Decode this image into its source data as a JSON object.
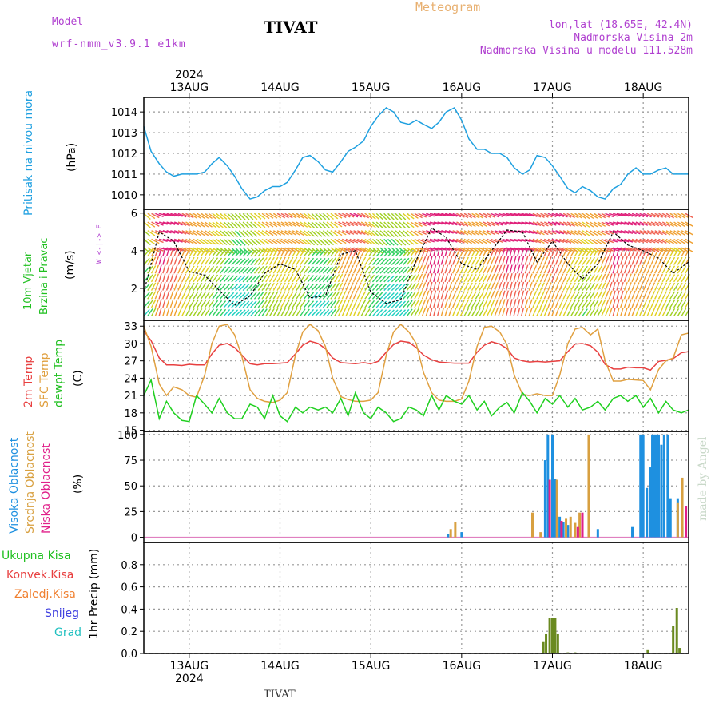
{
  "header": {
    "model_label": "Model",
    "model_name": "wrf-nmm_v3.9.1 e1km",
    "station": "TIVAT",
    "meteogram": "Meteogram",
    "lonlat": "lon,lat (18.65E, 42.4N)",
    "elevation": "Nadmorska Visina 2m",
    "model_elevation": "Nadmorska Visina u modelu 111.528m",
    "credit": "made by Angel",
    "bottom_station": "TIVAT",
    "year_top": "2024",
    "year_bottom": "2024"
  },
  "colors": {
    "pressure": "#1ea0e0",
    "temp2m": "#e84040",
    "sfc": "#e0a040",
    "dewpoint": "#20d020",
    "high_cloud": "#1e90e0",
    "mid_cloud": "#d8a040",
    "low_cloud": "#e0208a",
    "total_precip": "#6a8a20",
    "conv": "#e03030",
    "grid": "#999999"
  },
  "chart_data": [
    {
      "type": "line",
      "panel": "pressure",
      "ylabel": "Pritisak na nivou mora",
      "unit": "(hPa)",
      "ylim": [
        1009.3,
        1014.7
      ],
      "yticks": [
        1010,
        1011,
        1012,
        1013,
        1014
      ],
      "x_days": [
        "13AUG",
        "14AUG",
        "15AUG",
        "16AUG",
        "17AUG",
        "18AUG"
      ],
      "x": [
        12.5,
        12.58,
        12.67,
        12.75,
        12.83,
        12.92,
        13.0,
        13.08,
        13.17,
        13.25,
        13.33,
        13.42,
        13.5,
        13.58,
        13.67,
        13.75,
        13.83,
        13.92,
        14.0,
        14.08,
        14.17,
        14.25,
        14.33,
        14.42,
        14.5,
        14.58,
        14.67,
        14.75,
        14.83,
        14.92,
        15.0,
        15.08,
        15.17,
        15.25,
        15.33,
        15.42,
        15.5,
        15.58,
        15.67,
        15.75,
        15.83,
        15.92,
        16.0,
        16.08,
        16.17,
        16.25,
        16.33,
        16.42,
        16.5,
        16.58,
        16.67,
        16.75,
        16.83,
        16.92,
        17.0,
        17.08,
        17.17,
        17.25,
        17.33,
        17.42,
        17.5,
        17.58,
        17.67,
        17.75,
        17.83,
        17.92,
        18.0,
        18.08,
        18.17,
        18.25,
        18.33,
        18.42,
        18.5
      ],
      "values": [
        1013.3,
        1012.1,
        1011.5,
        1011.1,
        1010.9,
        1011.0,
        1011.0,
        1011.0,
        1011.1,
        1011.5,
        1011.8,
        1011.4,
        1010.9,
        1010.3,
        1009.8,
        1009.9,
        1010.2,
        1010.4,
        1010.4,
        1010.6,
        1011.2,
        1011.8,
        1011.9,
        1011.6,
        1011.2,
        1011.1,
        1011.6,
        1012.1,
        1012.3,
        1012.6,
        1013.3,
        1013.8,
        1014.2,
        1014.0,
        1013.5,
        1013.4,
        1013.6,
        1013.4,
        1013.2,
        1013.5,
        1014.0,
        1014.2,
        1013.6,
        1012.7,
        1012.2,
        1012.2,
        1012.0,
        1012.0,
        1011.8,
        1011.3,
        1011.0,
        1011.2,
        1011.9,
        1011.8,
        1011.4,
        1010.9,
        1010.3,
        1010.1,
        1010.4,
        1010.2,
        1009.9,
        1009.8,
        1010.3,
        1010.5,
        1011.0,
        1011.3,
        1011.0,
        1011.0,
        1011.2,
        1011.3,
        1011.0,
        1011.0,
        1011.0
      ]
    },
    {
      "type": "line",
      "panel": "wind",
      "ylabel": "10m Vjetar Brzina i Pravac",
      "unit": "(m/s)",
      "ylim": [
        0.3,
        6.2
      ],
      "yticks": [
        2,
        4,
        6
      ],
      "compass": "W <-|-> E",
      "x": [
        12.5,
        12.67,
        12.83,
        13.0,
        13.17,
        13.33,
        13.5,
        13.67,
        13.83,
        14.0,
        14.17,
        14.33,
        14.5,
        14.67,
        14.83,
        15.0,
        15.17,
        15.33,
        15.5,
        15.67,
        15.83,
        16.0,
        16.17,
        16.33,
        16.5,
        16.67,
        16.83,
        17.0,
        17.17,
        17.33,
        17.5,
        17.67,
        17.83,
        18.0,
        18.17,
        18.33,
        18.5
      ],
      "values": [
        1.8,
        5.0,
        4.5,
        2.9,
        2.7,
        1.9,
        1.1,
        1.6,
        2.8,
        3.3,
        3.0,
        1.5,
        1.6,
        3.8,
        4.0,
        1.8,
        1.2,
        1.4,
        3.5,
        5.2,
        4.7,
        3.3,
        3.0,
        4.0,
        5.1,
        5.0,
        3.4,
        4.5,
        3.3,
        2.5,
        3.3,
        5.0,
        4.3,
        4.0,
        3.6,
        2.8,
        3.4
      ]
    },
    {
      "type": "line",
      "panel": "temperature",
      "ylabel": "2m Temp / SFC Temp / dewpt Temp",
      "unit": "(C)",
      "ylim": [
        14.8,
        34.0
      ],
      "yticks": [
        15,
        18,
        21,
        24,
        27,
        30,
        33
      ],
      "x": [
        12.5,
        12.58,
        12.67,
        12.75,
        12.83,
        12.92,
        13.0,
        13.08,
        13.17,
        13.25,
        13.33,
        13.42,
        13.5,
        13.58,
        13.67,
        13.75,
        13.83,
        13.92,
        14.0,
        14.08,
        14.17,
        14.25,
        14.33,
        14.42,
        14.5,
        14.58,
        14.67,
        14.75,
        14.83,
        14.92,
        15.0,
        15.08,
        15.17,
        15.25,
        15.33,
        15.42,
        15.5,
        15.58,
        15.67,
        15.75,
        15.83,
        15.92,
        16.0,
        16.08,
        16.17,
        16.25,
        16.33,
        16.42,
        16.5,
        16.58,
        16.67,
        16.75,
        16.83,
        16.92,
        17.0,
        17.08,
        17.17,
        17.25,
        17.33,
        17.42,
        17.5,
        17.58,
        17.67,
        17.75,
        17.83,
        17.92,
        18.0,
        18.08,
        18.17,
        18.25,
        18.33,
        18.42,
        18.5
      ],
      "series": [
        {
          "name": "2m Temp",
          "key": "temp2m",
          "values": [
            32.2,
            30.5,
            27.5,
            26.3,
            26.3,
            26.2,
            26.4,
            26.3,
            26.3,
            28.2,
            29.7,
            30.0,
            29.3,
            28.0,
            26.5,
            26.3,
            26.5,
            26.5,
            26.6,
            26.7,
            28.2,
            29.7,
            30.4,
            30.0,
            29.1,
            27.5,
            26.7,
            26.6,
            26.5,
            26.7,
            26.5,
            26.9,
            28.5,
            29.8,
            30.4,
            30.2,
            29.3,
            28.0,
            27.2,
            26.8,
            26.7,
            26.6,
            26.6,
            26.6,
            28.5,
            29.7,
            30.3,
            29.9,
            29.1,
            27.5,
            27.0,
            26.8,
            26.9,
            26.8,
            26.9,
            27.0,
            28.6,
            29.9,
            30.0,
            29.6,
            28.5,
            26.4,
            25.6,
            25.6,
            25.9,
            25.8,
            25.8,
            25.4,
            26.9,
            27.1,
            27.4,
            28.4,
            28.6
          ]
        },
        {
          "name": "SFC Temp",
          "key": "sfc",
          "values": [
            33.0,
            29.5,
            23.0,
            21.0,
            22.5,
            22.0,
            21.0,
            20.7,
            24.5,
            30.0,
            33.0,
            33.3,
            31.5,
            27.8,
            22.0,
            20.5,
            20.0,
            19.8,
            20.2,
            21.5,
            28.0,
            32.0,
            33.3,
            32.2,
            29.5,
            24.0,
            20.8,
            20.3,
            20.0,
            20.0,
            20.2,
            21.5,
            28.0,
            32.0,
            33.3,
            32.0,
            30.0,
            25.0,
            21.5,
            20.2,
            20.0,
            20.0,
            20.4,
            23.5,
            29.5,
            32.8,
            33.0,
            32.0,
            29.8,
            24.5,
            21.2,
            21.0,
            21.3,
            21.0,
            21.0,
            24.5,
            30.0,
            32.5,
            32.8,
            31.5,
            32.5,
            27.0,
            23.5,
            23.5,
            23.8,
            23.7,
            23.6,
            22.0,
            25.5,
            27.0,
            27.5,
            31.5,
            31.8
          ]
        },
        {
          "name": "dewpt Temp",
          "key": "dewpoint",
          "values": [
            21.0,
            23.7,
            17.0,
            20.0,
            18.0,
            16.7,
            16.5,
            21.0,
            19.5,
            18.0,
            20.5,
            18.0,
            17.0,
            17.0,
            19.5,
            19.0,
            17.0,
            21.0,
            17.5,
            16.5,
            19.0,
            18.0,
            19.0,
            18.5,
            19.0,
            18.0,
            20.5,
            17.5,
            21.5,
            18.0,
            17.0,
            19.0,
            18.0,
            16.5,
            17.0,
            19.0,
            18.5,
            17.5,
            21.0,
            18.5,
            21.0,
            20.0,
            19.5,
            21.0,
            18.5,
            20.0,
            17.5,
            19.0,
            19.8,
            18.0,
            21.5,
            20.0,
            18.0,
            20.5,
            19.5,
            21.0,
            19.0,
            20.5,
            18.5,
            19.0,
            20.0,
            18.5,
            20.5,
            21.0,
            20.0,
            21.0,
            19.0,
            20.5,
            18.0,
            20.0,
            18.5,
            18.0,
            18.5
          ]
        }
      ]
    },
    {
      "type": "bar",
      "panel": "cloud",
      "ylabel": "Visoka Oblacnost / Srednja Oblacnost / Niska Oblacnost",
      "unit": "(%)",
      "ylim": [
        -5,
        103
      ],
      "yticks": [
        0,
        25,
        50,
        75,
        100
      ],
      "series": [
        {
          "name": "Visoka Oblacnost",
          "key": "high_cloud",
          "x": [
            15.85,
            16.0,
            16.92,
            16.95,
            17.0,
            17.03,
            17.08,
            17.12,
            17.17,
            17.5,
            17.88,
            17.97,
            18.0,
            18.04,
            18.08,
            18.1,
            18.12,
            18.14,
            18.17,
            18.2,
            18.23,
            18.27,
            18.3,
            18.38,
            18.43
          ],
          "values": [
            3,
            5,
            75,
            100,
            100,
            57,
            20,
            15,
            12,
            8,
            10,
            100,
            100,
            48,
            68,
            100,
            100,
            100,
            100,
            90,
            100,
            100,
            38,
            38,
            10
          ]
        },
        {
          "name": "Srednja Oblacnost",
          "key": "mid_cloud",
          "x": [
            15.88,
            15.93,
            16.78,
            16.87,
            17.05,
            17.15,
            17.2,
            17.25,
            17.3,
            17.4,
            18.38,
            18.43
          ],
          "values": [
            8,
            15,
            24,
            5,
            56,
            18,
            20,
            14,
            24,
            100,
            34,
            58
          ]
        },
        {
          "name": "Niska Oblacnost",
          "key": "low_cloud",
          "x": [
            16.97,
            17.1,
            17.28,
            17.33,
            18.47
          ],
          "values": [
            56,
            16,
            10,
            24,
            30
          ]
        }
      ]
    },
    {
      "type": "bar",
      "panel": "precip",
      "ylabel": "1hr Precip",
      "unit": "(mm)",
      "ylim": [
        0,
        1.0
      ],
      "yticks": [
        0.0,
        0.2,
        0.4,
        0.6,
        0.8
      ],
      "legend": [
        "Ukupna Kisa",
        "Konvek.Kisa",
        "Zaledj.Kisa",
        "Snijeg",
        "Grad"
      ],
      "series": [
        {
          "name": "Ukupna Kisa",
          "key": "total_precip",
          "x": [
            16.9,
            16.93,
            16.97,
            17.0,
            17.03,
            17.06,
            17.17,
            17.25,
            18.05,
            18.33,
            18.37,
            18.4
          ],
          "values": [
            0.11,
            0.18,
            0.32,
            0.32,
            0.32,
            0.18,
            0.01,
            0.01,
            0.03,
            0.25,
            0.41,
            0.05
          ]
        }
      ]
    }
  ]
}
